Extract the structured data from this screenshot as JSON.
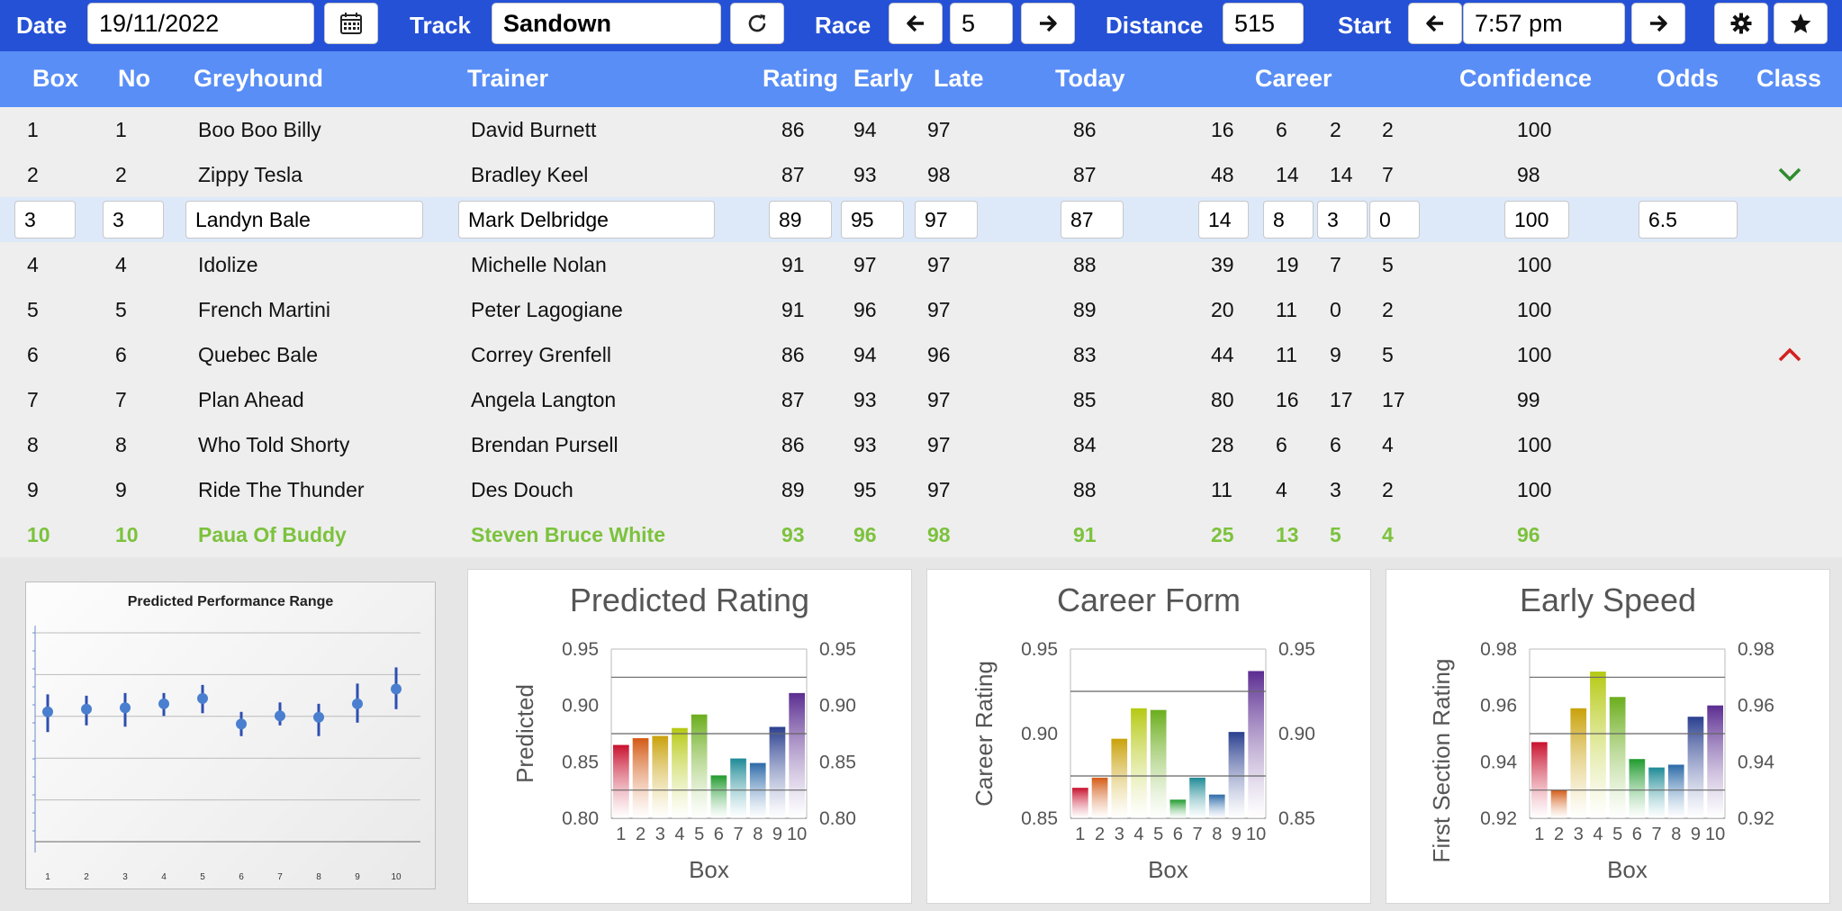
{
  "toolbar": {
    "date_label": "Date",
    "date_value": "19/11/2022",
    "track_label": "Track",
    "track_value": "Sandown",
    "race_label": "Race",
    "race_value": "5",
    "distance_label": "Distance",
    "distance_value": "515",
    "start_label": "Start",
    "start_value": "7:57 pm",
    "icons": [
      "calendar-icon",
      "refresh-icon",
      "arrow-left-icon",
      "arrow-right-icon",
      "gear-icon",
      "star-icon"
    ]
  },
  "table": {
    "headers": {
      "box": "Box",
      "no": "No",
      "greyhound": "Greyhound",
      "trainer": "Trainer",
      "rating": "Rating",
      "early": "Early",
      "late": "Late",
      "today": "Today",
      "career": "Career",
      "confidence": "Confidence",
      "odds": "Odds",
      "class": "Class"
    },
    "rows": [
      {
        "box": "1",
        "no": "1",
        "greyhound": "Boo Boo Billy",
        "trainer": "David Burnett",
        "rating": "86",
        "early": "94",
        "late": "97",
        "today": "86",
        "c1": "16",
        "c2": "6",
        "c3": "2",
        "c4": "2",
        "confidence": "100",
        "odds": "",
        "class": ""
      },
      {
        "box": "2",
        "no": "2",
        "greyhound": "Zippy Tesla",
        "trainer": "Bradley Keel",
        "rating": "87",
        "early": "93",
        "late": "98",
        "today": "87",
        "c1": "48",
        "c2": "14",
        "c3": "14",
        "c4": "7",
        "confidence": "98",
        "odds": "",
        "class": "down"
      },
      {
        "box": "3",
        "no": "3",
        "greyhound": "Landyn Bale",
        "trainer": "Mark Delbridge",
        "rating": "89",
        "early": "95",
        "late": "97",
        "today": "87",
        "c1": "14",
        "c2": "8",
        "c3": "3",
        "c4": "0",
        "confidence": "100",
        "odds": "6.5",
        "class": ""
      },
      {
        "box": "4",
        "no": "4",
        "greyhound": "Idolize",
        "trainer": "Michelle Nolan",
        "rating": "91",
        "early": "97",
        "late": "97",
        "today": "88",
        "c1": "39",
        "c2": "19",
        "c3": "7",
        "c4": "5",
        "confidence": "100",
        "odds": "",
        "class": ""
      },
      {
        "box": "5",
        "no": "5",
        "greyhound": "French Martini",
        "trainer": "Peter Lagogiane",
        "rating": "91",
        "early": "96",
        "late": "97",
        "today": "89",
        "c1": "20",
        "c2": "11",
        "c3": "0",
        "c4": "2",
        "confidence": "100",
        "odds": "",
        "class": ""
      },
      {
        "box": "6",
        "no": "6",
        "greyhound": "Quebec Bale",
        "trainer": "Correy Grenfell",
        "rating": "86",
        "early": "94",
        "late": "96",
        "today": "83",
        "c1": "44",
        "c2": "11",
        "c3": "9",
        "c4": "5",
        "confidence": "100",
        "odds": "",
        "class": "up"
      },
      {
        "box": "7",
        "no": "7",
        "greyhound": "Plan Ahead",
        "trainer": "Angela Langton",
        "rating": "87",
        "early": "93",
        "late": "97",
        "today": "85",
        "c1": "80",
        "c2": "16",
        "c3": "17",
        "c4": "17",
        "confidence": "99",
        "odds": "",
        "class": ""
      },
      {
        "box": "8",
        "no": "8",
        "greyhound": "Who Told Shorty",
        "trainer": "Brendan Pursell",
        "rating": "86",
        "early": "93",
        "late": "97",
        "today": "84",
        "c1": "28",
        "c2": "6",
        "c3": "6",
        "c4": "4",
        "confidence": "100",
        "odds": "",
        "class": ""
      },
      {
        "box": "9",
        "no": "9",
        "greyhound": "Ride The Thunder",
        "trainer": "Des Douch",
        "rating": "89",
        "early": "95",
        "late": "97",
        "today": "88",
        "c1": "11",
        "c2": "4",
        "c3": "3",
        "c4": "2",
        "confidence": "100",
        "odds": "",
        "class": ""
      },
      {
        "box": "10",
        "no": "10",
        "greyhound": "Paua Of Buddy",
        "trainer": "Steven Bruce White",
        "rating": "93",
        "early": "96",
        "late": "98",
        "today": "91",
        "c1": "25",
        "c2": "13",
        "c3": "5",
        "c4": "4",
        "confidence": "96",
        "odds": "",
        "class": ""
      }
    ],
    "selected_row": 2,
    "highlight_row": 9,
    "highlight_color": "#7cc23c"
  },
  "colors": {
    "accent": "#2451d6",
    "header": "#5a8ef7",
    "selected": "#dde8f9",
    "class_down": "#2e8b2e",
    "class_up": "#d42020"
  },
  "chart_data": [
    {
      "type": "scatter",
      "title": "Predicted Performance Range",
      "categories": [
        "1",
        "2",
        "3",
        "4",
        "5",
        "6",
        "7",
        "8",
        "9",
        "10"
      ],
      "values": [
        0.871,
        0.873,
        0.874,
        0.877,
        0.881,
        0.862,
        0.868,
        0.867,
        0.877,
        0.888
      ],
      "low": [
        0.856,
        0.861,
        0.86,
        0.868,
        0.87,
        0.853,
        0.861,
        0.853,
        0.863,
        0.873
      ],
      "high": [
        0.884,
        0.883,
        0.885,
        0.885,
        0.891,
        0.871,
        0.878,
        0.877,
        0.892,
        0.904
      ],
      "ylim": [
        0.78,
        0.935
      ],
      "grid": true
    },
    {
      "type": "bar",
      "title": "Predicted Rating",
      "xlabel": "Box",
      "ylabel": "Predicted",
      "categories": [
        "1",
        "2",
        "3",
        "4",
        "5",
        "6",
        "7",
        "8",
        "9",
        "10"
      ],
      "values": [
        0.865,
        0.871,
        0.873,
        0.88,
        0.892,
        0.838,
        0.853,
        0.849,
        0.881,
        0.911
      ],
      "ylim": [
        0.8,
        0.95
      ],
      "yticks": [
        "0.80",
        "0.85",
        "0.90",
        "0.95"
      ],
      "gridlines": [
        0.825,
        0.875,
        0.925
      ]
    },
    {
      "type": "bar",
      "title": "Career Form",
      "xlabel": "Box",
      "ylabel": "Career Rating",
      "categories": [
        "1",
        "2",
        "3",
        "4",
        "5",
        "6",
        "7",
        "8",
        "9",
        "10"
      ],
      "values": [
        0.868,
        0.874,
        0.897,
        0.915,
        0.914,
        0.861,
        0.874,
        0.864,
        0.901,
        0.937
      ],
      "ylim": [
        0.85,
        0.95
      ],
      "yticks": [
        "0.85",
        "0.90",
        "0.95"
      ],
      "gridlines": [
        0.875,
        0.925
      ]
    },
    {
      "type": "bar",
      "title": "Early Speed",
      "xlabel": "Box",
      "ylabel": "First Section Rating",
      "categories": [
        "1",
        "2",
        "3",
        "4",
        "5",
        "6",
        "7",
        "8",
        "9",
        "10"
      ],
      "values": [
        0.947,
        0.93,
        0.959,
        0.972,
        0.963,
        0.941,
        0.938,
        0.939,
        0.956,
        0.96
      ],
      "ylim": [
        0.92,
        0.98
      ],
      "yticks": [
        "0.92",
        "0.94",
        "0.96",
        "0.98"
      ],
      "gridlines": [
        0.93,
        0.95,
        0.97
      ]
    }
  ]
}
